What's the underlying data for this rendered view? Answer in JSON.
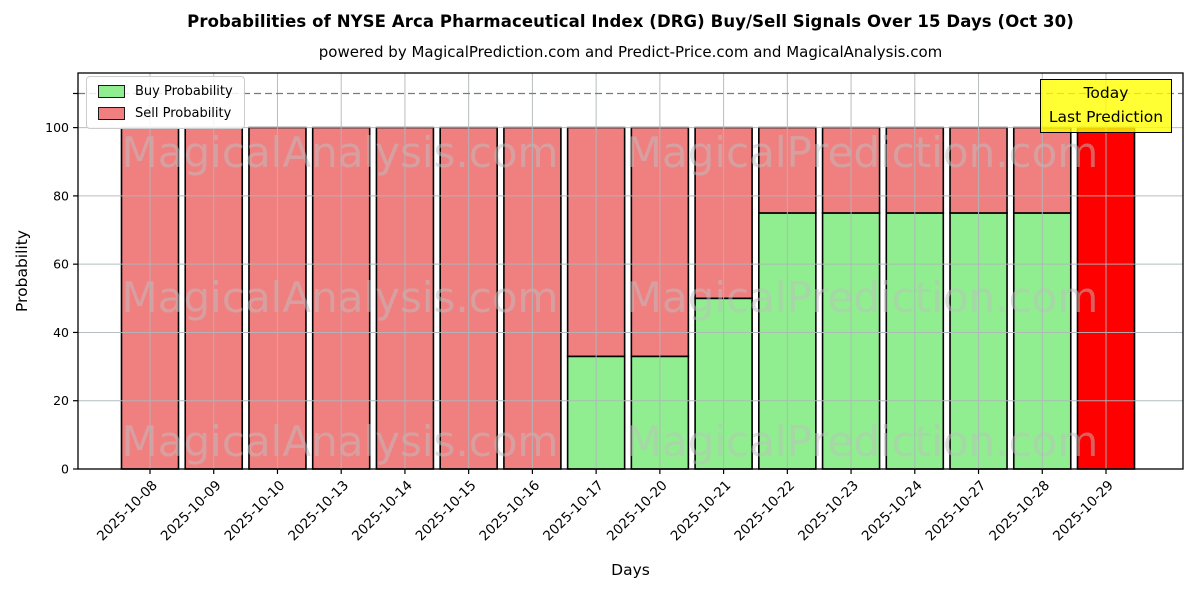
{
  "chart_data": {
    "type": "bar",
    "stacked": true,
    "title": "Probabilities of NYSE Arca Pharmaceutical Index (DRG) Buy/Sell Signals Over 15 Days (Oct 30)",
    "subtitle": "powered by MagicalPrediction.com and Predict-Price.com and MagicalAnalysis.com",
    "xlabel": "Days",
    "ylabel": "Probability",
    "ylim": [
      0,
      116
    ],
    "yticks": [
      0,
      20,
      40,
      60,
      80,
      100
    ],
    "dashed_threshold_y": 110,
    "grid": true,
    "legend_position": "upper-left",
    "categories": [
      "2025-10-08",
      "2025-10-09",
      "2025-10-10",
      "2025-10-13",
      "2025-10-14",
      "2025-10-15",
      "2025-10-16",
      "2025-10-17",
      "2025-10-20",
      "2025-10-21",
      "2025-10-22",
      "2025-10-23",
      "2025-10-24",
      "2025-10-27",
      "2025-10-28",
      "2025-10-29"
    ],
    "series": [
      {
        "name": "Buy Probability",
        "color": "#90ee90",
        "values": [
          0,
          0,
          0,
          0,
          0,
          0,
          0,
          33,
          33,
          50,
          75,
          75,
          75,
          75,
          75,
          0
        ]
      },
      {
        "name": "Sell Probability",
        "color": "#f08080",
        "values": [
          100,
          100,
          100,
          100,
          100,
          100,
          100,
          67,
          67,
          50,
          25,
          25,
          25,
          25,
          25,
          100
        ]
      }
    ],
    "highlight_last_bar": {
      "category": "2025-10-29",
      "color": "#ff0000",
      "meaning": "Today / Last Prediction",
      "value": 100
    }
  },
  "legend": {
    "items": [
      {
        "label": "Buy Probability",
        "color": "#90ee90"
      },
      {
        "label": "Sell Probability",
        "color": "#f08080"
      }
    ]
  },
  "annotation_box": {
    "line1": "Today",
    "line2": "Last Prediction",
    "bg_color": "#ffff00"
  },
  "watermarks": {
    "left_text": "MagicalAnalysis.com",
    "right_text": "MagicalPrediction.com"
  }
}
